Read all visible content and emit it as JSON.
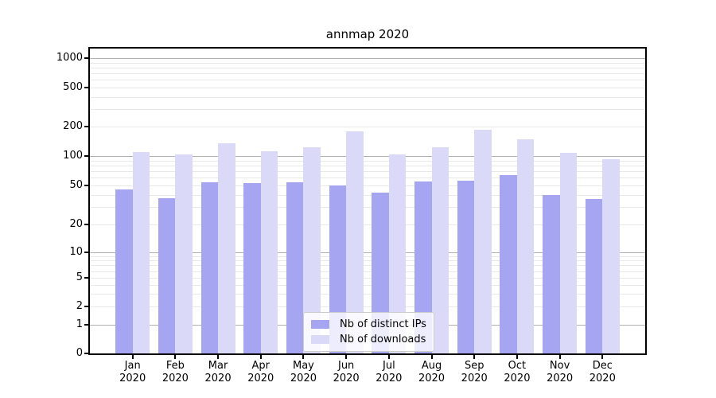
{
  "chart_data": {
    "type": "bar",
    "title": "annmap 2020",
    "categories": [
      "Jan 2020",
      "Feb 2020",
      "Mar 2020",
      "Apr 2020",
      "May 2020",
      "Jun 2020",
      "Jul 2020",
      "Aug 2020",
      "Sep 2020",
      "Oct 2020",
      "Nov 2020",
      "Dec 2020"
    ],
    "x_tick_line1": [
      "Jan",
      "Feb",
      "Mar",
      "Apr",
      "May",
      "Jun",
      "Jul",
      "Aug",
      "Sep",
      "Oct",
      "Nov",
      "Dec"
    ],
    "x_tick_line2": "2020",
    "series": [
      {
        "name": "Nb of distinct IPs",
        "color": "#a5a5f2",
        "values": [
          45,
          37,
          54,
          53,
          54,
          50,
          42,
          55,
          56,
          64,
          40,
          36
        ]
      },
      {
        "name": "Nb of downloads",
        "color": "#dadaf8",
        "values": [
          110,
          104,
          135,
          112,
          122,
          180,
          103,
          123,
          187,
          148,
          107,
          93
        ]
      }
    ],
    "xlabel": "",
    "ylabel": "",
    "y_ticks": [
      0,
      1,
      2,
      5,
      10,
      20,
      50,
      100,
      200,
      500,
      1000
    ],
    "yscale": "log above 1, linear 0-1",
    "ylim": [
      0,
      1280
    ],
    "grid": "horizontal, major decades dark + log minors light",
    "legend_position": "lower center"
  },
  "colors": {
    "ips_bar": "#a5a5f2",
    "downloads_bar": "#dadaf8",
    "grid_major": "#b0b0b0",
    "grid_minor": "#e8e8e8",
    "axis": "#000000",
    "background": "#ffffff"
  }
}
